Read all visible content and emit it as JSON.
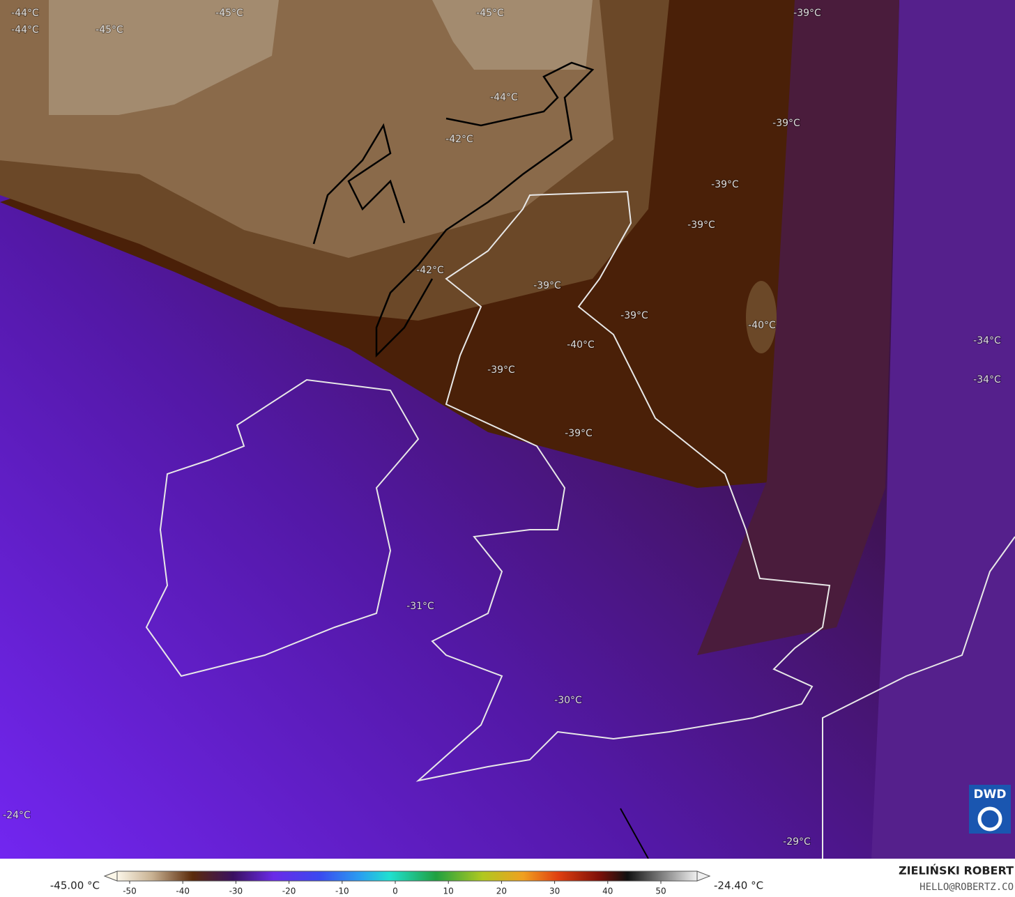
{
  "map_labels": [
    "-44°C",
    "-44°C",
    "-45°C",
    "-45°C",
    "-45°C",
    "-39°C",
    "-44°C",
    "-42°C",
    "-39°C",
    "-39°C",
    "-39°C",
    "-42°C",
    "-39°C",
    "-39°C",
    "-40°C",
    "-40°C",
    "-34°C",
    "-34°C",
    "-39°C",
    "-39°C",
    "-31°C",
    "-30°C",
    "-24°C",
    "-29°C"
  ],
  "colorbar": {
    "min_label": "-45.00 °C",
    "max_label": "-24.40 °C",
    "ticks": [
      -50,
      -40,
      -30,
      -20,
      -10,
      0,
      10,
      20,
      30,
      40,
      50
    ]
  },
  "credits": {
    "author": "ZIELIŃSKI ROBERT",
    "email": "HELLO@ROBERTZ.CO",
    "logo": "DWD"
  }
}
